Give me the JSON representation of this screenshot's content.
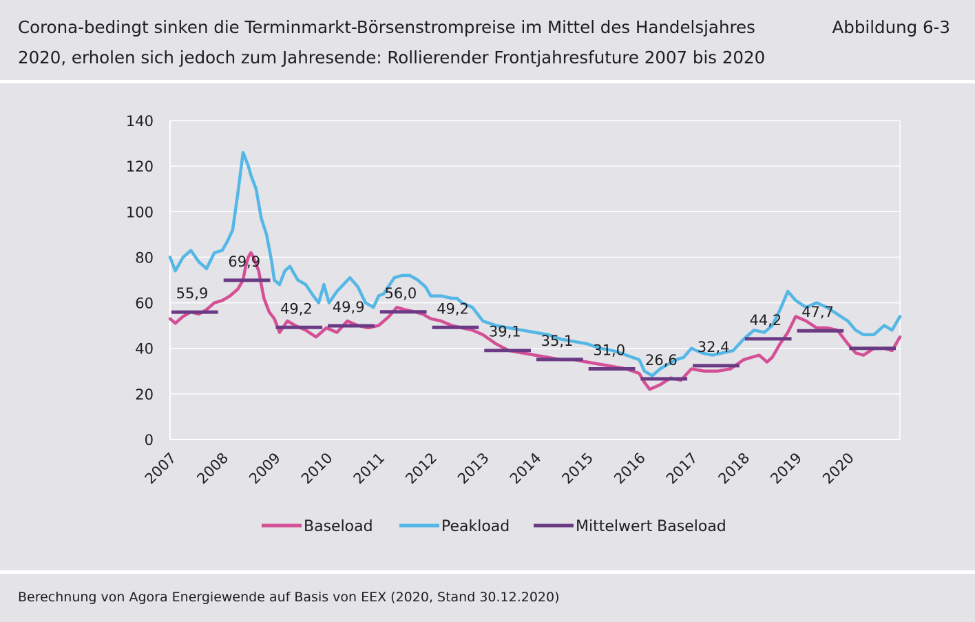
{
  "header": {
    "title": "Corona-bedingt sinken die Terminmarkt-Börsenstrompreise im Mittel des Handelsjahres 2020, erholen sich jedoch zum Jahresende: Rollierender Frontjahresfuture 2007 bis 2020",
    "figure_label": "Abbildung 6-3"
  },
  "footer": {
    "source": "Berechnung von Agora Energiewende auf Basis von EEX (2020, Stand 30.12.2020)"
  },
  "chart_data": {
    "type": "line",
    "title": "",
    "xlabel": "",
    "ylabel": "",
    "xlim": [
      2007,
      2021
    ],
    "ylim": [
      0,
      140
    ],
    "yticks": [
      0,
      20,
      40,
      60,
      80,
      100,
      120,
      140
    ],
    "xticks": [
      "2007",
      "2008",
      "2009",
      "2010",
      "2011",
      "2012",
      "2013",
      "2014",
      "2015",
      "2016",
      "2017",
      "2018",
      "2019",
      "2020"
    ],
    "grid": "horizontal",
    "legend_position": "bottom",
    "colors": {
      "Baseload": "#d44f95",
      "Peakload": "#55b7e6",
      "Mittelwert Baseload": "#6a3b84"
    },
    "series": [
      {
        "name": "Baseload",
        "x": [
          2007.0,
          2007.1,
          2007.25,
          2007.4,
          2007.55,
          2007.7,
          2007.85,
          2008.0,
          2008.15,
          2008.3,
          2008.4,
          2008.45,
          2008.5,
          2008.55,
          2008.6,
          2008.7,
          2008.8,
          2008.9,
          2009.0,
          2009.1,
          2009.25,
          2009.4,
          2009.6,
          2009.8,
          2010.0,
          2010.2,
          2010.4,
          2010.6,
          2010.8,
          2011.0,
          2011.2,
          2011.35,
          2011.5,
          2011.7,
          2011.85,
          2012.0,
          2012.2,
          2012.4,
          2012.6,
          2012.8,
          2013.0,
          2013.25,
          2013.5,
          2013.75,
          2014.0,
          2014.25,
          2014.5,
          2014.75,
          2015.0,
          2015.25,
          2015.5,
          2015.75,
          2016.0,
          2016.1,
          2016.2,
          2016.4,
          2016.6,
          2016.8,
          2017.0,
          2017.25,
          2017.5,
          2017.75,
          2018.0,
          2018.15,
          2018.3,
          2018.45,
          2018.55,
          2018.7,
          2018.85,
          2019.0,
          2019.2,
          2019.4,
          2019.6,
          2019.8,
          2020.0,
          2020.15,
          2020.3,
          2020.5,
          2020.7,
          2020.85,
          2021.0
        ],
        "values": [
          53,
          51,
          54,
          56,
          55,
          57,
          60,
          61,
          63,
          66,
          70,
          76,
          80,
          82,
          80,
          74,
          62,
          56,
          53,
          47,
          52,
          50,
          48,
          45,
          49,
          47,
          52,
          50,
          49,
          50,
          54,
          58,
          57,
          56,
          55,
          53,
          52,
          50,
          49,
          48,
          46,
          42,
          39,
          38,
          37,
          36,
          35,
          35,
          34,
          33,
          32,
          31,
          29,
          25,
          22,
          24,
          27,
          26,
          31,
          30,
          30,
          31,
          35,
          36,
          37,
          34,
          36,
          42,
          47,
          54,
          52,
          49,
          49,
          48,
          42,
          38,
          37,
          40,
          40,
          39,
          45
        ]
      },
      {
        "name": "Peakload",
        "x": [
          2007.0,
          2007.1,
          2007.25,
          2007.4,
          2007.55,
          2007.7,
          2007.85,
          2008.0,
          2008.1,
          2008.2,
          2008.3,
          2008.4,
          2008.5,
          2008.55,
          2008.65,
          2008.75,
          2008.85,
          2008.95,
          2009.0,
          2009.1,
          2009.2,
          2009.3,
          2009.45,
          2009.6,
          2009.75,
          2009.85,
          2009.95,
          2010.05,
          2010.2,
          2010.45,
          2010.6,
          2010.75,
          2010.9,
          2011.0,
          2011.1,
          2011.3,
          2011.45,
          2011.6,
          2011.75,
          2011.9,
          2012.0,
          2012.2,
          2012.4,
          2012.5,
          2012.6,
          2012.8,
          2013.0,
          2013.25,
          2013.5,
          2013.75,
          2014.0,
          2014.25,
          2014.5,
          2014.75,
          2015.0,
          2015.25,
          2015.5,
          2015.75,
          2016.0,
          2016.1,
          2016.25,
          2016.4,
          2016.55,
          2016.7,
          2016.85,
          2017.0,
          2017.2,
          2017.4,
          2017.6,
          2017.8,
          2018.0,
          2018.2,
          2018.4,
          2018.55,
          2018.7,
          2018.85,
          2019.0,
          2019.2,
          2019.4,
          2019.6,
          2019.8,
          2020.0,
          2020.15,
          2020.3,
          2020.5,
          2020.7,
          2020.85,
          2021.0
        ],
        "values": [
          80,
          74,
          80,
          83,
          78,
          75,
          82,
          83,
          87,
          92,
          108,
          126,
          120,
          116,
          110,
          97,
          90,
          78,
          70,
          68,
          74,
          76,
          70,
          68,
          63,
          60,
          68,
          60,
          65,
          71,
          67,
          60,
          58,
          63,
          64,
          71,
          72,
          72,
          70,
          67,
          63,
          63,
          62,
          62,
          60,
          58,
          52,
          50,
          49,
          48,
          47,
          46,
          44,
          43,
          42,
          40,
          39,
          37,
          35,
          30,
          28,
          31,
          33,
          35,
          36,
          40,
          38,
          37,
          38,
          39,
          44,
          48,
          47,
          50,
          57,
          65,
          61,
          58,
          60,
          58,
          55,
          52,
          48,
          46,
          46,
          50,
          48,
          54
        ]
      }
    ],
    "averages": {
      "name": "Mittelwert Baseload",
      "years": [
        2007,
        2008,
        2009,
        2010,
        2011,
        2012,
        2013,
        2014,
        2015,
        2016,
        2017,
        2018,
        2019,
        2020
      ],
      "values": [
        55.9,
        69.9,
        49.2,
        49.9,
        56.0,
        49.2,
        39.1,
        35.1,
        31.0,
        26.6,
        32.4,
        44.2,
        47.7,
        40.0
      ],
      "labels": [
        "55,9",
        "69,9",
        "49,2",
        "49,9",
        "56,0",
        "49,2",
        "39,1",
        "35,1",
        "31,0",
        "26,6",
        "32,4",
        "44,2",
        "47,7",
        ""
      ]
    }
  }
}
